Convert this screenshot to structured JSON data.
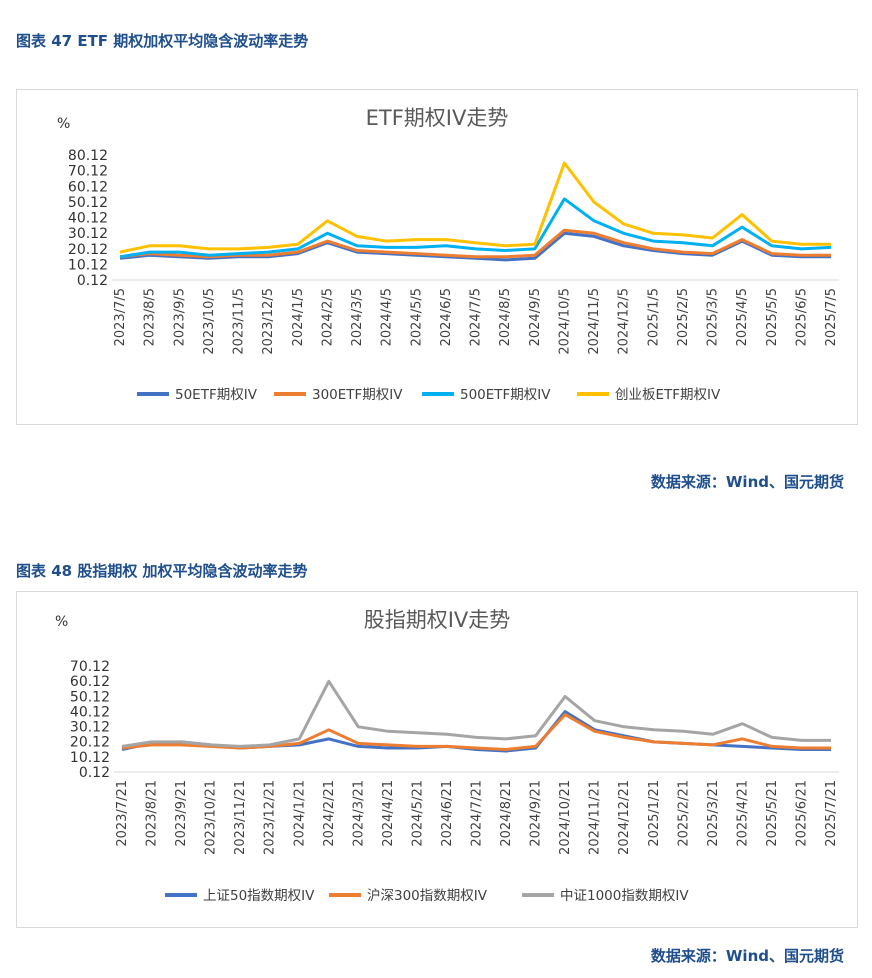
{
  "figures": [
    {
      "caption": "图表 47 ETF 期权加权平均隐含波动率走势",
      "source": "数据来源：Wind、国元期货",
      "chart_data": {
        "type": "line",
        "title": "ETF期权IV走势",
        "ylabel": "%",
        "yticks": [
          "80.12",
          "70.12",
          "60.12",
          "50.12",
          "40.12",
          "30.12",
          "20.12",
          "10.12",
          "0.12"
        ],
        "ylim": [
          0.12,
          80.12
        ],
        "grid": false,
        "legend": "bottom",
        "x": [
          "2023/7/5",
          "2023/8/5",
          "2023/9/5",
          "2023/10/5",
          "2023/11/5",
          "2023/12/5",
          "2024/1/5",
          "2024/2/5",
          "2024/3/5",
          "2024/4/5",
          "2024/5/5",
          "2024/6/5",
          "2024/7/5",
          "2024/8/5",
          "2024/9/5",
          "2024/10/5",
          "2024/11/5",
          "2024/12/5",
          "2025/1/5",
          "2025/2/5",
          "2025/3/5",
          "2025/4/5",
          "2025/5/5",
          "2025/6/5",
          "2025/7/5"
        ],
        "series": [
          {
            "name": "50ETF期权IV",
            "color": "#4472c4",
            "values": [
              14,
              16,
              15,
              14,
              15,
              15,
              17,
              24,
              18,
              17,
              16,
              15,
              14,
              13,
              14,
              30,
              28,
              22,
              19,
              17,
              16,
              25,
              16,
              15,
              15
            ]
          },
          {
            "name": "300ETF期权IV",
            "color": "#ed7d31",
            "values": [
              15,
              17,
              16,
              15,
              16,
              16,
              18,
              25,
              19,
              18,
              17,
              16,
              15,
              15,
              16,
              32,
              30,
              24,
              20,
              18,
              17,
              26,
              17,
              16,
              16
            ]
          },
          {
            "name": "500ETF期权IV",
            "color": "#00b0f0",
            "values": [
              15,
              18,
              18,
              16,
              17,
              18,
              20,
              30,
              22,
              21,
              21,
              22,
              20,
              19,
              20,
              52,
              38,
              30,
              25,
              24,
              22,
              34,
              22,
              20,
              21
            ]
          },
          {
            "name": "创业板ETF期权IV",
            "color": "#ffc000",
            "values": [
              18,
              22,
              22,
              20,
              20,
              21,
              23,
              38,
              28,
              25,
              26,
              26,
              24,
              22,
              23,
              75,
              50,
              36,
              30,
              29,
              27,
              42,
              25,
              23,
              23
            ]
          }
        ]
      }
    },
    {
      "caption": "图表 48 股指期权 加权平均隐含波动率走势",
      "source": "数据来源：Wind、国元期货",
      "chart_data": {
        "type": "line",
        "title": "股指期权IV走势",
        "ylabel": "%",
        "yticks": [
          "70.12",
          "60.12",
          "50.12",
          "40.12",
          "30.12",
          "20.12",
          "10.12",
          "0.12"
        ],
        "ylim": [
          0.12,
          70.12
        ],
        "grid": false,
        "legend": "bottom",
        "x": [
          "2023/7/21",
          "2023/8/21",
          "2023/9/21",
          "2023/10/21",
          "2023/11/21",
          "2023/12/21",
          "2024/1/21",
          "2024/2/21",
          "2024/3/21",
          "2024/4/21",
          "2024/5/21",
          "2024/6/21",
          "2024/7/21",
          "2024/8/21",
          "2024/9/21",
          "2024/10/21",
          "2024/11/21",
          "2024/12/21",
          "2025/1/21",
          "2025/2/21",
          "2025/3/21",
          "2025/4/21",
          "2025/5/21",
          "2025/6/21",
          "2025/7/21"
        ],
        "series": [
          {
            "name": "上证50指数期权IV",
            "color": "#4472c4",
            "values": [
              15,
              19,
              20,
              18,
              16,
              17,
              18,
              22,
              17,
              16,
              16,
              17,
              15,
              14,
              16,
              40,
              28,
              24,
              20,
              19,
              18,
              17,
              16,
              15,
              15
            ]
          },
          {
            "name": "沪深300指数期权IV",
            "color": "#ed7d31",
            "values": [
              16,
              18,
              18,
              17,
              16,
              17,
              19,
              28,
              19,
              18,
              17,
              17,
              16,
              15,
              17,
              38,
              27,
              23,
              20,
              19,
              18,
              22,
              17,
              16,
              16
            ]
          },
          {
            "name": "中证1000指数期权IV",
            "color": "#a5a5a5",
            "values": [
              17,
              20,
              20,
              18,
              17,
              18,
              22,
              60,
              30,
              27,
              26,
              25,
              23,
              22,
              24,
              50,
              34,
              30,
              28,
              27,
              25,
              32,
              23,
              21,
              21
            ]
          }
        ]
      }
    }
  ]
}
